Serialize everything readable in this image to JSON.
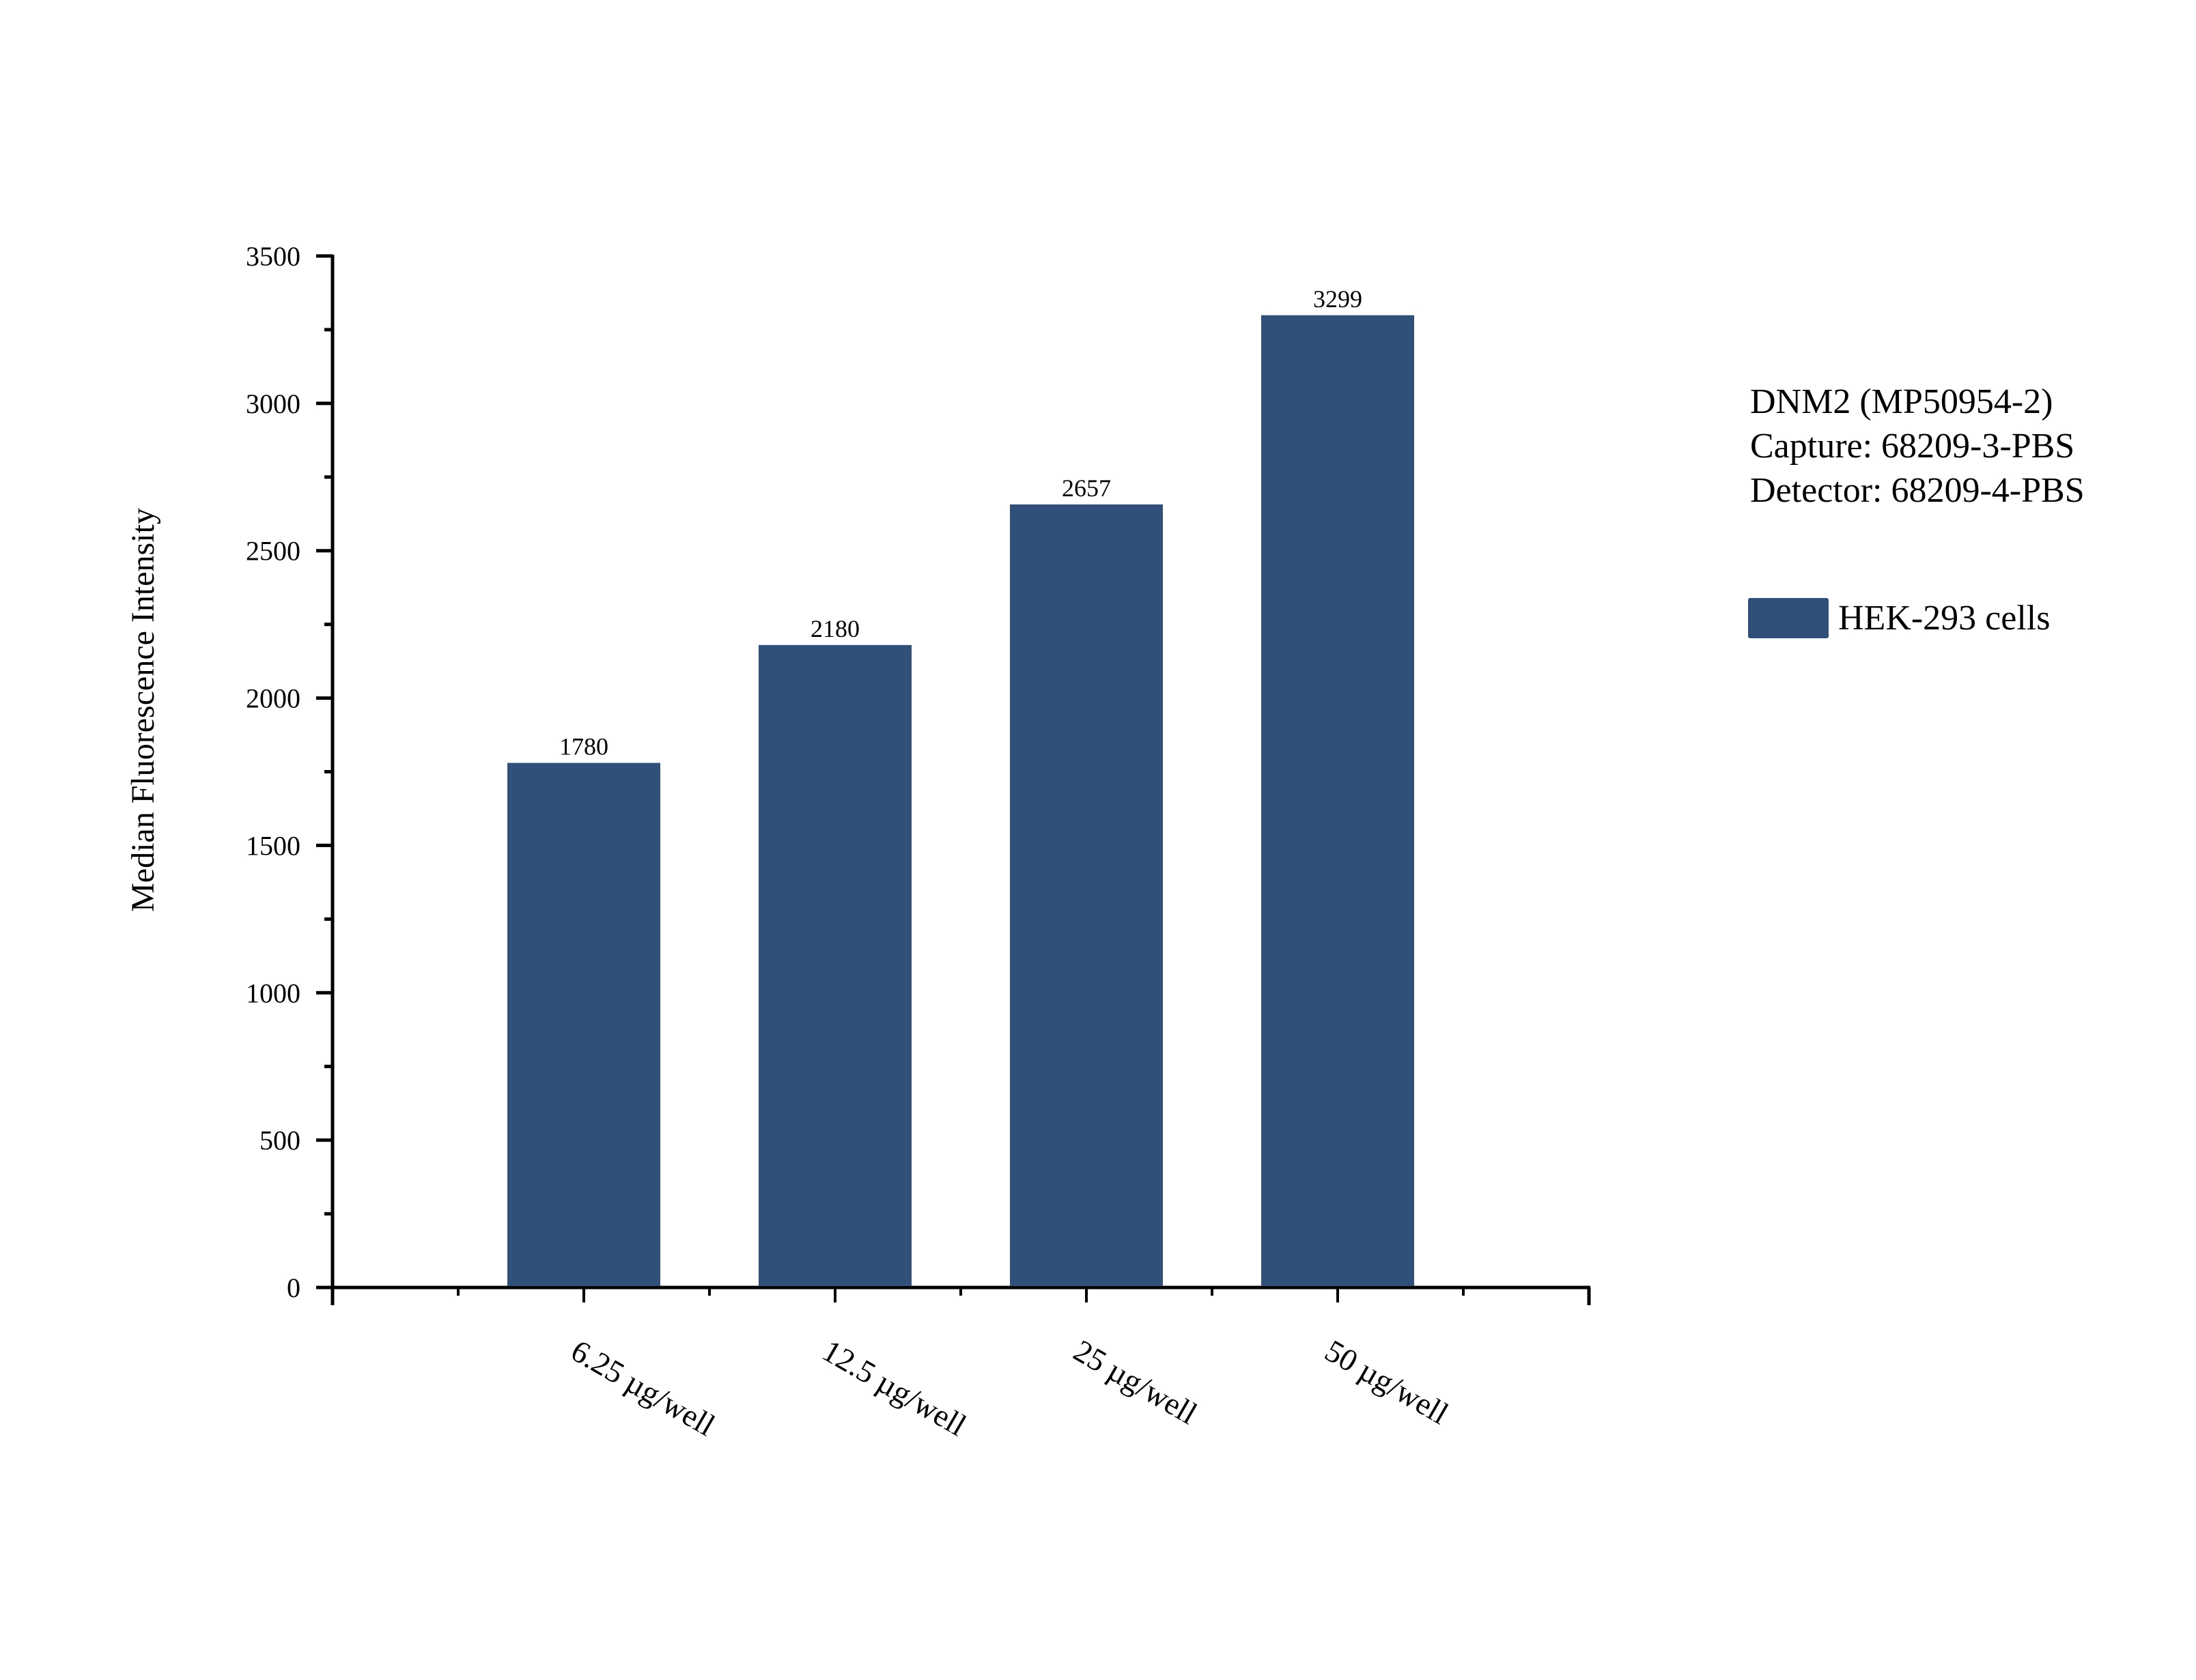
{
  "legend": {
    "lines": [
      "DNM2 (MP50954-2)",
      "Capture: 68209-3-PBS",
      "Detector: 68209-4-PBS"
    ],
    "series_label": "HEK-293 cells",
    "series_color": "#305079"
  },
  "chart_data": {
    "type": "bar",
    "title": "",
    "xlabel": "",
    "ylabel": "Median Fluorescence Intensity",
    "categories": [
      "6.25 µg/well",
      "12.5 µg/well",
      "25 µg/well",
      "50 µg/well"
    ],
    "series": [
      {
        "name": "HEK-293 cells",
        "values": [
          1780,
          2180,
          2657,
          3299
        ],
        "color": "#305079"
      }
    ],
    "data_labels": [
      "1780",
      "2180",
      "2657",
      "3299"
    ],
    "ylim": [
      0,
      3500
    ],
    "yticks": [
      0,
      500,
      1000,
      1500,
      2000,
      2500,
      3000,
      3500
    ],
    "ytick_labels": [
      "0",
      "500",
      "1000",
      "1500",
      "2000",
      "2500",
      "3000",
      "3500"
    ],
    "grid": false,
    "legend_position": "right",
    "xtick_rotation": 30
  }
}
